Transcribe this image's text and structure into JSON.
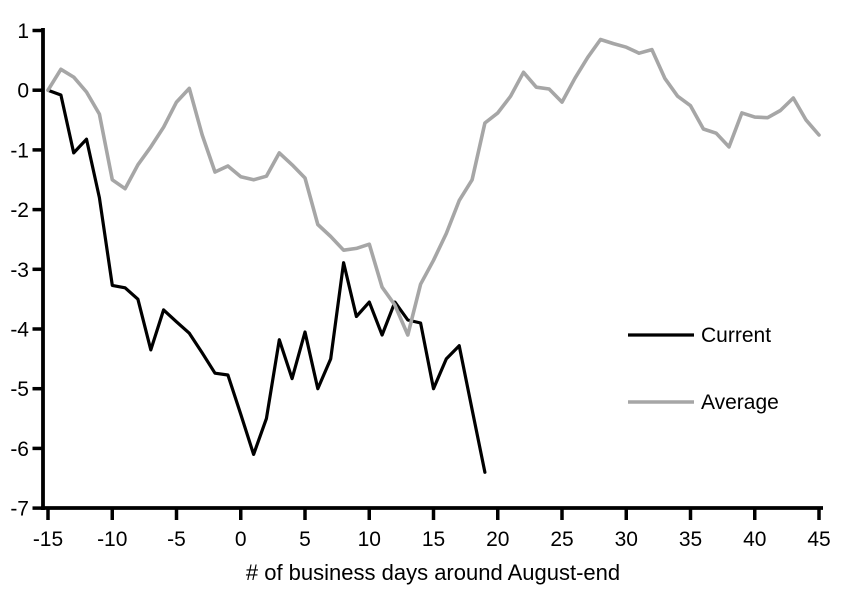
{
  "chart_data": {
    "type": "line",
    "title": "",
    "xlabel": "# of business days around August-end",
    "ylabel": "",
    "xlim": [
      -15,
      45
    ],
    "ylim": [
      -7,
      1
    ],
    "x_ticks": [
      -15,
      -10,
      -5,
      0,
      5,
      10,
      15,
      20,
      25,
      30,
      35,
      40,
      45
    ],
    "y_ticks": [
      1,
      0,
      -1,
      -2,
      -3,
      -4,
      -5,
      -6,
      -7
    ],
    "grid": false,
    "legend_position": "middle-right",
    "series": [
      {
        "name": "Current",
        "color": "#000000",
        "x": [
          -15,
          -14,
          -13,
          -12,
          -11,
          -10,
          -9,
          -8,
          -7,
          -6,
          -5,
          -4,
          -3,
          -2,
          -1,
          0,
          1,
          2,
          3,
          4,
          5,
          6,
          7,
          8,
          9,
          10,
          11,
          12,
          13,
          14,
          15,
          16,
          17,
          18,
          19
        ],
        "values": [
          0,
          -0.08,
          -1.05,
          -0.82,
          -1.8,
          -3.27,
          -3.31,
          -3.5,
          -4.35,
          -3.68,
          -3.88,
          -4.07,
          -4.4,
          -4.74,
          -4.77,
          -5.43,
          -6.1,
          -5.5,
          -4.18,
          -4.83,
          -4.05,
          -5.0,
          -4.5,
          -2.89,
          -3.79,
          -3.55,
          -4.1,
          -3.55,
          -3.85,
          -3.9,
          -5.0,
          -4.5,
          -4.28,
          -5.35,
          -6.4
        ]
      },
      {
        "name": "Average",
        "color": "#a6a6a6",
        "x": [
          -15,
          -14,
          -13,
          -12,
          -11,
          -10,
          -9,
          -8,
          -7,
          -6,
          -5,
          -4,
          -3,
          -2,
          -1,
          0,
          1,
          2,
          3,
          4,
          5,
          6,
          7,
          8,
          9,
          10,
          11,
          12,
          13,
          14,
          15,
          16,
          17,
          18,
          19,
          20,
          21,
          22,
          23,
          24,
          25,
          26,
          27,
          28,
          29,
          30,
          31,
          32,
          33,
          34,
          35,
          36,
          37,
          38,
          39,
          40,
          41,
          42,
          43,
          44,
          45
        ],
        "values": [
          0,
          0.35,
          0.22,
          -0.03,
          -0.4,
          -1.5,
          -1.65,
          -1.25,
          -0.95,
          -0.62,
          -0.2,
          0.03,
          -0.75,
          -1.37,
          -1.27,
          -1.45,
          -1.5,
          -1.44,
          -1.05,
          -1.25,
          -1.47,
          -2.25,
          -2.45,
          -2.68,
          -2.65,
          -2.58,
          -3.3,
          -3.6,
          -4.1,
          -3.25,
          -2.85,
          -2.4,
          -1.85,
          -1.5,
          -0.55,
          -0.38,
          -0.1,
          0.3,
          0.05,
          0.02,
          -0.2,
          0.2,
          0.55,
          0.85,
          0.78,
          0.72,
          0.62,
          0.68,
          0.2,
          -0.1,
          -0.26,
          -0.65,
          -0.72,
          -0.95,
          -0.38,
          -0.45,
          -0.46,
          -0.34,
          -0.13,
          -0.5,
          -0.75
        ]
      }
    ]
  }
}
